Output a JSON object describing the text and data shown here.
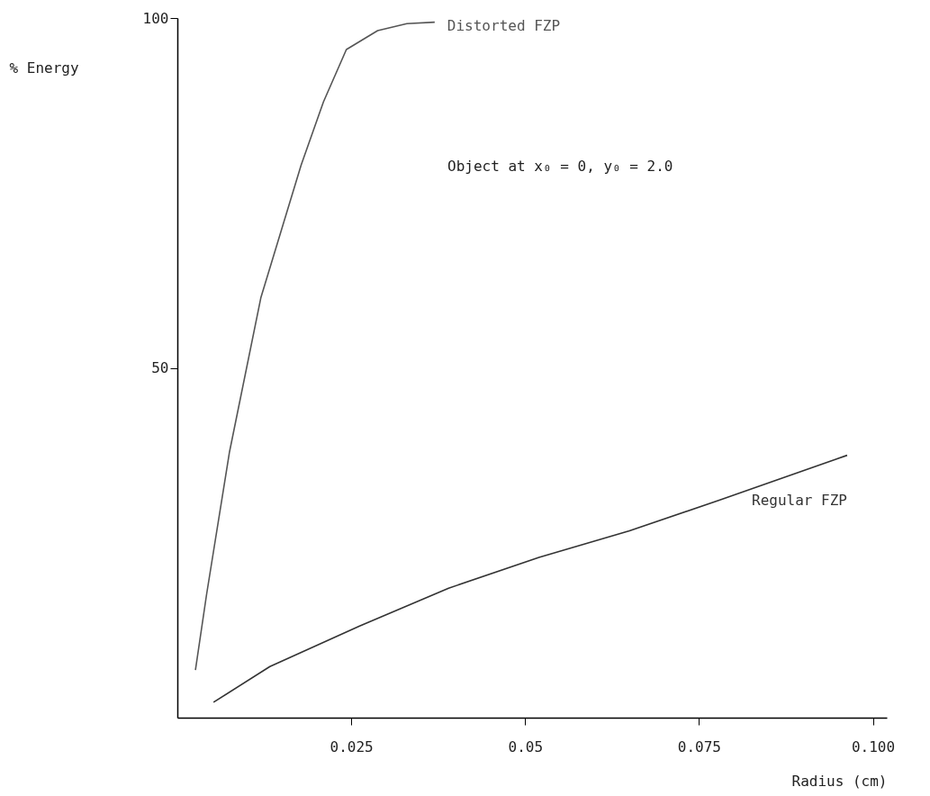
{
  "chart_data": {
    "type": "line",
    "xlabel": "Radius (cm)",
    "ylabel": "% Energy",
    "xlim": [
      0,
      0.102
    ],
    "ylim": [
      0,
      100
    ],
    "xticks": [
      0.025,
      0.05,
      0.075,
      {
        "value": 0.1,
        "label": "0.100"
      }
    ],
    "yticks": [
      50,
      100
    ],
    "grid": false,
    "marker": "none",
    "line_style": "solid",
    "annotations": [
      "Object at x₀ = 0, y₀ = 2.0"
    ],
    "series": [
      {
        "name": "Distorted FZP",
        "color": "#555555",
        "x": [
          0.0026,
          0.0042,
          0.0075,
          0.012,
          0.0178,
          0.021,
          0.0243,
          0.0288,
          0.033,
          0.037
        ],
        "values": [
          6.8,
          17.6,
          38,
          60,
          79,
          88,
          95.5,
          98.2,
          99.2,
          99.4
        ]
      },
      {
        "name": "Regular FZP",
        "color": "#333333",
        "x": [
          0.0052,
          0.0133,
          0.0262,
          0.039,
          0.052,
          0.065,
          0.078,
          0.0963
        ],
        "values": [
          2.2,
          7.3,
          13.1,
          18.5,
          22.9,
          26.7,
          31.1,
          37.5
        ]
      }
    ]
  }
}
